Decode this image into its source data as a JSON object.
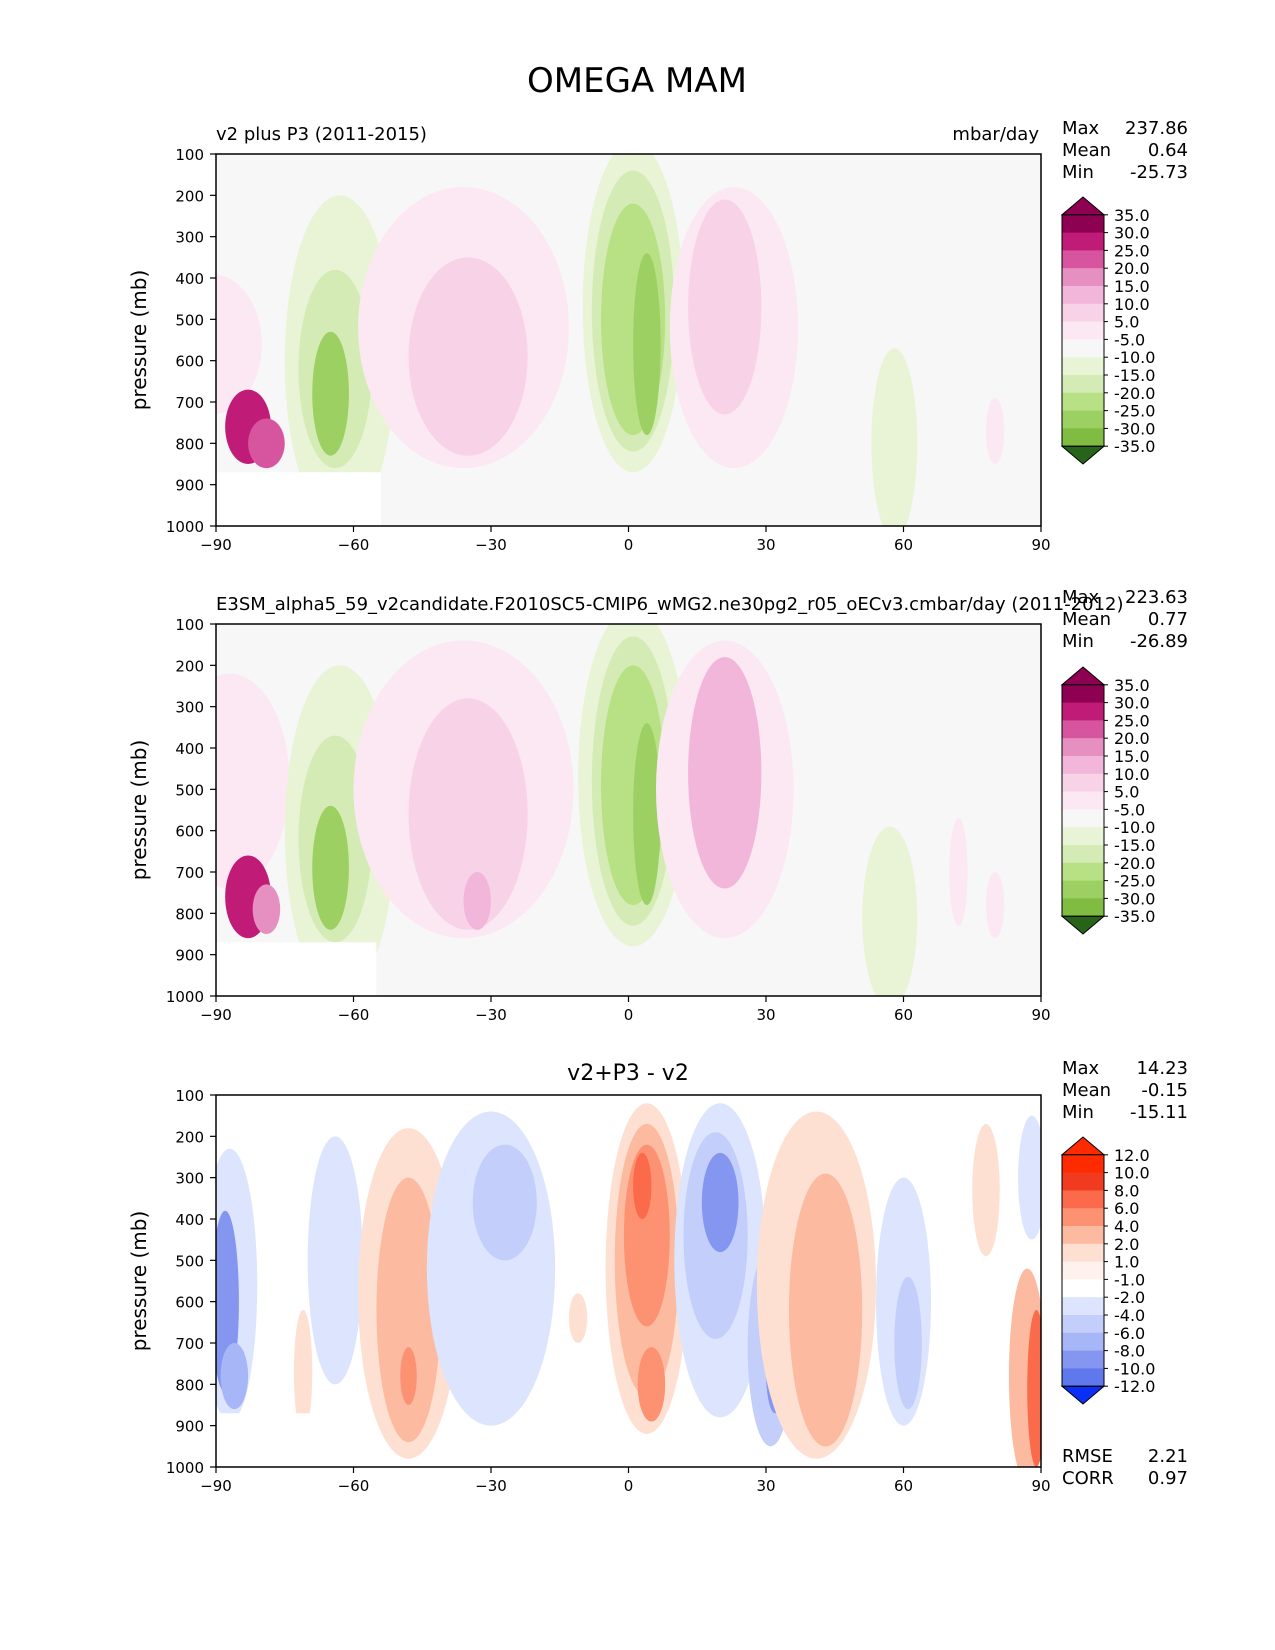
{
  "figure_title": "OMEGA MAM",
  "colors": {
    "panel_bg": "#f7f7f7",
    "diff_bg": "#ffffff",
    "pink_scale": [
      "#f7f7f7",
      "#fce8f2",
      "#f8d3e8",
      "#f1b6da",
      "#e690c2",
      "#d6559e",
      "#c01b77",
      "#8e0152"
    ],
    "green_scale": [
      "#f7f7f7",
      "#e8f4d5",
      "#d5ebb5",
      "#b8e186",
      "#9dd062",
      "#7fbc41",
      "#5b9c2d",
      "#4d9221",
      "#276419"
    ],
    "red_scale": [
      "#fff1ec",
      "#fee0d2",
      "#fcbba1",
      "#fc9272",
      "#fb6a4a",
      "#f03b20",
      "#ff2b00"
    ],
    "blue_scale": [
      "#eef2ff",
      "#dde4fd",
      "#c3cefa",
      "#a7b6f6",
      "#8596f1",
      "#5f78ec",
      "#3d5ae8",
      "#0a2ff5"
    ]
  },
  "chart_data": [
    {
      "type": "contour",
      "title_left": "v2 plus P3 (2011-2015)",
      "title_right": "mbar/day",
      "xlabel": "",
      "ylabel": "pressure (mb)",
      "xlim": [
        -90,
        90
      ],
      "ylim": [
        1000,
        100
      ],
      "xticks": [
        "−90",
        "−60",
        "−30",
        "0",
        "30",
        "60",
        "90"
      ],
      "yticks": [
        "100",
        "200",
        "300",
        "400",
        "500",
        "600",
        "700",
        "800",
        "900",
        "1000"
      ],
      "stats": {
        "max_label": "Max",
        "max": "237.86",
        "mean_label": "Mean",
        "mean": "0.64",
        "min_label": "Min",
        "min": "-25.73"
      },
      "colorbar_labels": [
        "35.0",
        "30.0",
        "25.0",
        "20.0",
        "15.0",
        "10.0",
        "5.0",
        "-5.0",
        "-10.0",
        "-15.0",
        "-20.0",
        "-25.0",
        "-30.0",
        "-35.0"
      ],
      "blobs": [
        {
          "lon": -91,
          "p": 560,
          "rx": 11,
          "ry": 170,
          "color": "pink",
          "level": 1
        },
        {
          "lon": -83,
          "p": 760,
          "rx": 5,
          "ry": 90,
          "color": "pink",
          "level": 6
        },
        {
          "lon": -79,
          "p": 800,
          "rx": 4,
          "ry": 60,
          "color": "pink",
          "level": 5
        },
        {
          "lon": -63,
          "p": 600,
          "rx": 12,
          "ry": 400,
          "color": "green",
          "level": 1
        },
        {
          "lon": -64,
          "p": 620,
          "rx": 8,
          "ry": 240,
          "color": "green",
          "level": 2
        },
        {
          "lon": -65,
          "p": 680,
          "rx": 4,
          "ry": 150,
          "color": "green",
          "level": 4
        },
        {
          "lon": -36,
          "p": 520,
          "rx": 23,
          "ry": 340,
          "color": "pink",
          "level": 1
        },
        {
          "lon": -35,
          "p": 590,
          "rx": 13,
          "ry": 240,
          "color": "pink",
          "level": 2
        },
        {
          "lon": 1,
          "p": 470,
          "rx": 11,
          "ry": 400,
          "color": "green",
          "level": 1
        },
        {
          "lon": 1,
          "p": 480,
          "rx": 9,
          "ry": 340,
          "color": "green",
          "level": 2
        },
        {
          "lon": 1,
          "p": 500,
          "rx": 7,
          "ry": 280,
          "color": "green",
          "level": 3
        },
        {
          "lon": 4,
          "p": 560,
          "rx": 3,
          "ry": 220,
          "color": "green",
          "level": 4
        },
        {
          "lon": 23,
          "p": 520,
          "rx": 14,
          "ry": 340,
          "color": "pink",
          "level": 1
        },
        {
          "lon": 21,
          "p": 470,
          "rx": 8,
          "ry": 260,
          "color": "pink",
          "level": 2
        },
        {
          "lon": 58,
          "p": 800,
          "rx": 5,
          "ry": 230,
          "color": "green",
          "level": 1
        },
        {
          "lon": 80,
          "p": 770,
          "rx": 2,
          "ry": 80,
          "color": "pink",
          "level": 1
        }
      ],
      "blank_region": {
        "lon_min": -90,
        "lon_max": -54,
        "p_min": 870,
        "p_max": 1000
      }
    },
    {
      "type": "contour",
      "title_left": "E3SM_alpha5_59_v2candidate.F2010SC5-CMIP6_wMG2.ne30pg2_r05_oECv3.cmbar/day (2011-2012)",
      "title_right": "",
      "xlabel": "",
      "ylabel": "pressure (mb)",
      "xlim": [
        -90,
        90
      ],
      "ylim": [
        1000,
        100
      ],
      "xticks": [
        "−90",
        "−60",
        "−30",
        "0",
        "30",
        "60",
        "90"
      ],
      "yticks": [
        "100",
        "200",
        "300",
        "400",
        "500",
        "600",
        "700",
        "800",
        "900",
        "1000"
      ],
      "stats": {
        "max_label": "Max",
        "max": "223.63",
        "mean_label": "Mean",
        "mean": "0.77",
        "min_label": "Min",
        "min": "-26.89"
      },
      "colorbar_labels": [
        "35.0",
        "30.0",
        "25.0",
        "20.0",
        "15.0",
        "10.0",
        "5.0",
        "-5.0",
        "-10.0",
        "-15.0",
        "-20.0",
        "-25.0",
        "-30.0",
        "-35.0"
      ],
      "blobs": [
        {
          "lon": -87,
          "p": 480,
          "rx": 13,
          "ry": 260,
          "color": "pink",
          "level": 1
        },
        {
          "lon": -83,
          "p": 760,
          "rx": 5,
          "ry": 100,
          "color": "pink",
          "level": 6
        },
        {
          "lon": -79,
          "p": 790,
          "rx": 3,
          "ry": 60,
          "color": "pink",
          "level": 4
        },
        {
          "lon": -63,
          "p": 600,
          "rx": 12,
          "ry": 400,
          "color": "green",
          "level": 1
        },
        {
          "lon": -64,
          "p": 620,
          "rx": 8,
          "ry": 250,
          "color": "green",
          "level": 2
        },
        {
          "lon": -65,
          "p": 690,
          "rx": 4,
          "ry": 150,
          "color": "green",
          "level": 4
        },
        {
          "lon": -36,
          "p": 500,
          "rx": 24,
          "ry": 360,
          "color": "pink",
          "level": 1
        },
        {
          "lon": -35,
          "p": 560,
          "rx": 13,
          "ry": 280,
          "color": "pink",
          "level": 2
        },
        {
          "lon": -33,
          "p": 770,
          "rx": 3,
          "ry": 70,
          "color": "pink",
          "level": 3
        },
        {
          "lon": 1,
          "p": 470,
          "rx": 12,
          "ry": 410,
          "color": "green",
          "level": 1
        },
        {
          "lon": 1,
          "p": 480,
          "rx": 9,
          "ry": 350,
          "color": "green",
          "level": 2
        },
        {
          "lon": 1,
          "p": 490,
          "rx": 7,
          "ry": 290,
          "color": "green",
          "level": 3
        },
        {
          "lon": 4,
          "p": 560,
          "rx": 3,
          "ry": 220,
          "color": "green",
          "level": 4
        },
        {
          "lon": 21,
          "p": 500,
          "rx": 15,
          "ry": 360,
          "color": "pink",
          "level": 1
        },
        {
          "lon": 21,
          "p": 460,
          "rx": 8,
          "ry": 280,
          "color": "pink",
          "level": 3
        },
        {
          "lon": 57,
          "p": 810,
          "rx": 6,
          "ry": 220,
          "color": "green",
          "level": 1
        },
        {
          "lon": 72,
          "p": 700,
          "rx": 2,
          "ry": 130,
          "color": "pink",
          "level": 1
        },
        {
          "lon": 80,
          "p": 780,
          "rx": 2,
          "ry": 80,
          "color": "pink",
          "level": 1
        }
      ],
      "blank_region": {
        "lon_min": -90,
        "lon_max": -55,
        "p_min": 870,
        "p_max": 1000
      }
    },
    {
      "type": "contour",
      "title_center": "v2+P3 - v2",
      "xlabel": "",
      "ylabel": "pressure (mb)",
      "xlim": [
        -90,
        90
      ],
      "ylim": [
        1000,
        100
      ],
      "xticks": [
        "−90",
        "−60",
        "−30",
        "0",
        "30",
        "60",
        "90"
      ],
      "yticks": [
        "100",
        "200",
        "300",
        "400",
        "500",
        "600",
        "700",
        "800",
        "900",
        "1000"
      ],
      "stats": {
        "max_label": "Max",
        "max": "14.23",
        "mean_label": "Mean",
        "mean": "-0.15",
        "min_label": "Min",
        "min": "-15.11"
      },
      "bottom_stats": {
        "rmse_label": "RMSE",
        "rmse": "2.21",
        "corr_label": "CORR",
        "corr": "0.97"
      },
      "colorbar_labels": [
        "12.0",
        "10.0",
        "8.0",
        "6.0",
        "4.0",
        "2.0",
        "1.0",
        "-1.0",
        "-2.0",
        "-4.0",
        "-6.0",
        "-8.0",
        "-10.0",
        "-12.0"
      ],
      "blobs": [
        {
          "lon": -87,
          "p": 560,
          "rx": 6,
          "ry": 330,
          "color": "blue",
          "level": 1
        },
        {
          "lon": -88,
          "p": 600,
          "rx": 3,
          "ry": 220,
          "color": "blue",
          "level": 4
        },
        {
          "lon": -86,
          "p": 780,
          "rx": 3,
          "ry": 80,
          "color": "blue",
          "level": 3
        },
        {
          "lon": -71,
          "p": 770,
          "rx": 2,
          "ry": 150,
          "color": "red",
          "level": 1
        },
        {
          "lon": -64,
          "p": 500,
          "rx": 6,
          "ry": 300,
          "color": "blue",
          "level": 1
        },
        {
          "lon": -48,
          "p": 580,
          "rx": 11,
          "ry": 400,
          "color": "red",
          "level": 1
        },
        {
          "lon": -48,
          "p": 620,
          "rx": 7,
          "ry": 320,
          "color": "red",
          "level": 2
        },
        {
          "lon": -48,
          "p": 780,
          "rx": 1.8,
          "ry": 70,
          "color": "red",
          "level": 3
        },
        {
          "lon": -30,
          "p": 520,
          "rx": 14,
          "ry": 380,
          "color": "blue",
          "level": 1
        },
        {
          "lon": -27,
          "p": 360,
          "rx": 7,
          "ry": 140,
          "color": "blue",
          "level": 2
        },
        {
          "lon": -11,
          "p": 640,
          "rx": 2,
          "ry": 60,
          "color": "red",
          "level": 1
        },
        {
          "lon": 4,
          "p": 520,
          "rx": 9,
          "ry": 400,
          "color": "red",
          "level": 1
        },
        {
          "lon": 4,
          "p": 500,
          "rx": 7,
          "ry": 330,
          "color": "red",
          "level": 2
        },
        {
          "lon": 4,
          "p": 440,
          "rx": 5,
          "ry": 220,
          "color": "red",
          "level": 3
        },
        {
          "lon": 5,
          "p": 800,
          "rx": 3,
          "ry": 90,
          "color": "red",
          "level": 3
        },
        {
          "lon": 3,
          "p": 320,
          "rx": 2,
          "ry": 80,
          "color": "red",
          "level": 4
        },
        {
          "lon": 20,
          "p": 500,
          "rx": 10,
          "ry": 380,
          "color": "blue",
          "level": 1
        },
        {
          "lon": 19,
          "p": 440,
          "rx": 7,
          "ry": 250,
          "color": "blue",
          "level": 2
        },
        {
          "lon": 20,
          "p": 360,
          "rx": 4,
          "ry": 120,
          "color": "blue",
          "level": 4
        },
        {
          "lon": 31,
          "p": 710,
          "rx": 5,
          "ry": 240,
          "color": "blue",
          "level": 2
        },
        {
          "lon": 32,
          "p": 770,
          "rx": 2,
          "ry": 100,
          "color": "blue",
          "level": 4
        },
        {
          "lon": 41,
          "p": 560,
          "rx": 13,
          "ry": 420,
          "color": "red",
          "level": 1
        },
        {
          "lon": 43,
          "p": 620,
          "rx": 8,
          "ry": 330,
          "color": "red",
          "level": 2
        },
        {
          "lon": 60,
          "p": 600,
          "rx": 6,
          "ry": 300,
          "color": "blue",
          "level": 1
        },
        {
          "lon": 61,
          "p": 700,
          "rx": 3,
          "ry": 160,
          "color": "blue",
          "level": 2
        },
        {
          "lon": 78,
          "p": 330,
          "rx": 3,
          "ry": 160,
          "color": "red",
          "level": 1
        },
        {
          "lon": 87,
          "p": 780,
          "rx": 4,
          "ry": 260,
          "color": "red",
          "level": 2
        },
        {
          "lon": 89,
          "p": 810,
          "rx": 2,
          "ry": 190,
          "color": "red",
          "level": 4
        },
        {
          "lon": 88,
          "p": 300,
          "rx": 3,
          "ry": 150,
          "color": "blue",
          "level": 1
        }
      ],
      "blank_region": {
        "lon_min": -90,
        "lon_max": -61,
        "p_min": 870,
        "p_max": 1000
      }
    }
  ]
}
